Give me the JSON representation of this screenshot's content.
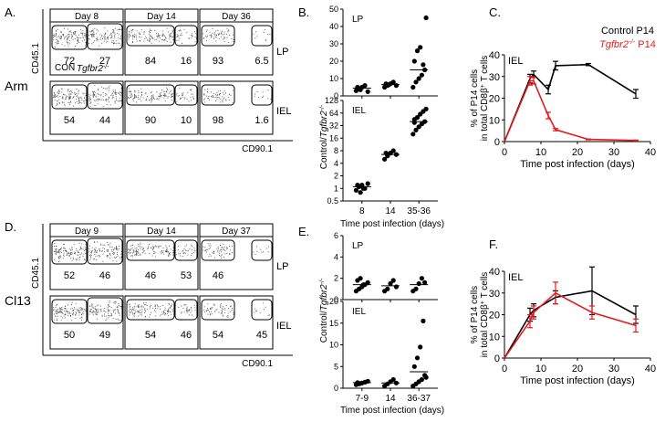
{
  "panel_labels": {
    "A": "A.",
    "B": "B.",
    "C": "C.",
    "D": "D.",
    "E": "E.",
    "F": "F."
  },
  "flow_A": {
    "row_label": "Arm",
    "y_axis_label": "CD45.1",
    "x_axis_label": "CD90.1",
    "columns": [
      "Day 8",
      "Day 14",
      "Day 36"
    ],
    "row_tags": [
      "LP",
      "IEL"
    ],
    "gate_text": {
      "con": "CON",
      "ko": "Tgfbr2-/-"
    },
    "gates": [
      [
        [
          "72",
          "27"
        ],
        [
          "84",
          "16"
        ],
        [
          "93",
          "6.5"
        ]
      ],
      [
        [
          "54",
          "44"
        ],
        [
          "90",
          "10"
        ],
        [
          "98",
          "1.6"
        ]
      ]
    ]
  },
  "flow_D": {
    "row_label": "Cl13",
    "y_axis_label": "CD45.1",
    "x_axis_label": "CD90.1",
    "columns": [
      "Day 9",
      "Day 14",
      "Day 37"
    ],
    "row_tags": [
      "LP",
      "IEL"
    ],
    "gates": [
      [
        [
          "52",
          "46"
        ],
        [
          "46",
          "53"
        ],
        [
          "46",
          ""
        ]
      ],
      [
        [
          "50",
          "49"
        ],
        [
          "54",
          "46"
        ],
        [
          "54",
          "45"
        ]
      ]
    ]
  },
  "chart_data": [
    {
      "id": "B",
      "type": "scatter",
      "ylabel": "Control/Tgfbr2-/-",
      "xlabel": "Time post infection (days)",
      "categories": [
        "8",
        "14",
        "35-36"
      ],
      "subplots": [
        {
          "label": "LP",
          "ylim": [
            0,
            50
          ],
          "points": [
            [
              3,
              4,
              5,
              6,
              2.5,
              5,
              3.5
            ],
            [
              5,
              6,
              7,
              8,
              6,
              7,
              6.5
            ],
            [
              5,
              8,
              10,
              12,
              15,
              20,
              26,
              28,
              18,
              45
            ]
          ],
          "means": [
            4.5,
            6.5,
            15
          ]
        },
        {
          "label": "IEL",
          "yscale": "log2",
          "yticks": [
            0.5,
            1,
            2,
            4,
            8,
            16,
            32,
            64,
            128
          ],
          "points": [
            [
              0.9,
              1.1,
              1.2,
              1.0,
              1.3,
              1.2,
              0.8,
              1.0
            ],
            [
              5,
              6,
              7,
              8,
              6.5,
              7
            ],
            [
              20,
              25,
              30,
              35,
              40,
              45,
              50,
              60,
              70,
              80,
              38
            ]
          ],
          "means": [
            1.1,
            6.5,
            40
          ]
        }
      ]
    },
    {
      "id": "C",
      "type": "line",
      "title": "IEL",
      "xlabel": "Time post infection (days)",
      "ylabel": "% of P14 cells in total CD8β+ T cells",
      "xlim": [
        0,
        40
      ],
      "ylim": [
        0,
        40
      ],
      "xticks": [
        0,
        10,
        20,
        30,
        40
      ],
      "yticks": [
        0,
        10,
        20,
        30,
        40
      ],
      "series": [
        {
          "name": "Control P14",
          "color": "#000000",
          "x": [
            0,
            7,
            8,
            12,
            14,
            23,
            36
          ],
          "y": [
            0,
            29,
            31,
            24,
            35,
            35.5,
            22
          ],
          "err": [
            0,
            2,
            1.5,
            2,
            2,
            0.5,
            2
          ]
        },
        {
          "name": "Tgfbr2-/- P14",
          "color": "#e31a1c",
          "x": [
            0,
            7,
            8,
            12,
            14,
            23,
            36
          ],
          "y": [
            0,
            28,
            28,
            12,
            5.5,
            1,
            0.5
          ],
          "err": [
            0,
            2,
            1.5,
            1.5,
            0.5,
            0.2,
            0.2
          ]
        }
      ]
    },
    {
      "id": "E",
      "type": "scatter",
      "ylabel": "Control/Tgfbr2-/-",
      "xlabel": "Time post infection (days)",
      "categories": [
        "7-9",
        "14",
        "36-37"
      ],
      "subplots": [
        {
          "label": "LP",
          "ylim": [
            0,
            6
          ],
          "yticks": [
            0,
            2,
            4,
            6
          ],
          "points": [
            [
              0.8,
              1.0,
              1.2,
              1.4,
              1.6,
              1.8,
              2.0,
              1.4
            ],
            [
              0.8,
              1.0,
              1.5,
              1.8,
              1.2
            ],
            [
              0.8,
              1.0,
              1.5,
              2.0,
              1.6
            ]
          ],
          "means": [
            1.4,
            1.3,
            1.4
          ]
        },
        {
          "label": "IEL",
          "ylim": [
            0,
            20
          ],
          "yticks": [
            0,
            5,
            10,
            15,
            20
          ],
          "points": [
            [
              0.8,
              1.0,
              1.2,
              1.4,
              1.6,
              1.3,
              1.1
            ],
            [
              0.5,
              1.0,
              1.5,
              2.0,
              1.2
            ],
            [
              0.5,
              1.0,
              1.5,
              2.0,
              3.0,
              5.0,
              7.0,
              9.5,
              15.5,
              2.5
            ]
          ],
          "means": [
            1.3,
            1.2,
            3.8
          ]
        }
      ]
    },
    {
      "id": "F",
      "type": "line",
      "title": "IEL",
      "xlabel": "Time post infection (days)",
      "ylabel": "% of P14 cells in total CD8β+ T cells",
      "xlim": [
        0,
        40
      ],
      "ylim": [
        0,
        40
      ],
      "xticks": [
        0,
        10,
        20,
        30,
        40
      ],
      "yticks": [
        0,
        10,
        20,
        30,
        40
      ],
      "series": [
        {
          "name": "Control P14",
          "color": "#000000",
          "x": [
            0,
            7,
            8,
            14,
            24,
            36
          ],
          "y": [
            0,
            20,
            22,
            28,
            31,
            20
          ],
          "err": [
            0,
            3,
            3,
            3,
            11,
            4
          ]
        },
        {
          "name": "Tgfbr2-/- P14",
          "color": "#e31a1c",
          "x": [
            0,
            7,
            8,
            14,
            24,
            36
          ],
          "y": [
            0,
            17,
            21,
            30,
            21,
            15
          ],
          "err": [
            0,
            3,
            3,
            5,
            3,
            3
          ]
        }
      ]
    }
  ]
}
